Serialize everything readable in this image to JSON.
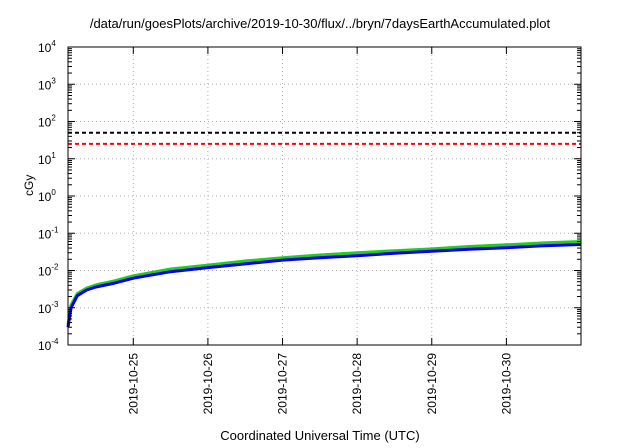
{
  "title": "/data/run/goesPlots/archive/2019-10-30/flux/../bryn/7daysEarthAccumulated.plot",
  "chart_data": {
    "type": "line",
    "title": "/data/run/goesPlots/archive/2019-10-30/flux/../bryn/7daysEarthAccumulated.plot",
    "xlabel": "Coordinated Universal Time (UTC)",
    "ylabel": "cGy",
    "x_scale": "time",
    "y_scale": "log",
    "xlim": [
      "2019-10-24T03:00",
      "2019-10-31T00:00"
    ],
    "ylim": [
      0.0001,
      10000
    ],
    "x_ticks": [
      "2019-10-25",
      "2019-10-26",
      "2019-10-27",
      "2019-10-28",
      "2019-10-29",
      "2019-10-30"
    ],
    "y_ticks": [
      {
        "base": "10",
        "exp": "-4",
        "value": 0.0001
      },
      {
        "base": "10",
        "exp": "-3",
        "value": 0.001
      },
      {
        "base": "10",
        "exp": "-2",
        "value": 0.01
      },
      {
        "base": "10",
        "exp": "-1",
        "value": 0.1
      },
      {
        "base": "10",
        "exp": "0",
        "value": 1
      },
      {
        "base": "10",
        "exp": "1",
        "value": 10
      },
      {
        "base": "10",
        "exp": "2",
        "value": 100
      },
      {
        "base": "10",
        "exp": "3",
        "value": 1000
      },
      {
        "base": "10",
        "exp": "4",
        "value": 10000
      }
    ],
    "grid": true,
    "reference_lines": [
      {
        "value": 50,
        "color": "#000000",
        "style": "dashed"
      },
      {
        "value": 25,
        "color": "#ff0000",
        "style": "dashed"
      }
    ],
    "series": [
      {
        "color": "#22cc22",
        "x": [
          "2019-10-24T03:00",
          "2019-10-24T04:00",
          "2019-10-24T06:00",
          "2019-10-24T09:00",
          "2019-10-24T12:00",
          "2019-10-24T18:00",
          "2019-10-25T00:00",
          "2019-10-25T12:00",
          "2019-10-26T00:00",
          "2019-10-26T12:00",
          "2019-10-27T00:00",
          "2019-10-27T12:00",
          "2019-10-28T00:00",
          "2019-10-28T12:00",
          "2019-10-29T00:00",
          "2019-10-29T12:00",
          "2019-10-30T00:00",
          "2019-10-30T12:00",
          "2019-10-31T00:00"
        ],
        "values": [
          0.00036,
          0.0012,
          0.0024,
          0.0034,
          0.0041,
          0.0053,
          0.0072,
          0.011,
          0.014,
          0.018,
          0.022,
          0.026,
          0.03,
          0.034,
          0.038,
          0.044,
          0.049,
          0.055,
          0.06
        ]
      },
      {
        "color": "#0000ee",
        "x": [
          "2019-10-24T03:00",
          "2019-10-24T04:00",
          "2019-10-24T06:00",
          "2019-10-24T09:00",
          "2019-10-24T12:00",
          "2019-10-24T18:00",
          "2019-10-25T00:00",
          "2019-10-25T12:00",
          "2019-10-26T00:00",
          "2019-10-26T12:00",
          "2019-10-27T00:00",
          "2019-10-27T12:00",
          "2019-10-28T00:00",
          "2019-10-28T12:00",
          "2019-10-29T00:00",
          "2019-10-29T12:00",
          "2019-10-30T00:00",
          "2019-10-30T12:00",
          "2019-10-31T00:00"
        ],
        "values": [
          0.0003,
          0.001,
          0.0021,
          0.003,
          0.0036,
          0.0046,
          0.0062,
          0.0093,
          0.012,
          0.015,
          0.019,
          0.022,
          0.025,
          0.029,
          0.033,
          0.037,
          0.041,
          0.046,
          0.05
        ]
      }
    ]
  }
}
